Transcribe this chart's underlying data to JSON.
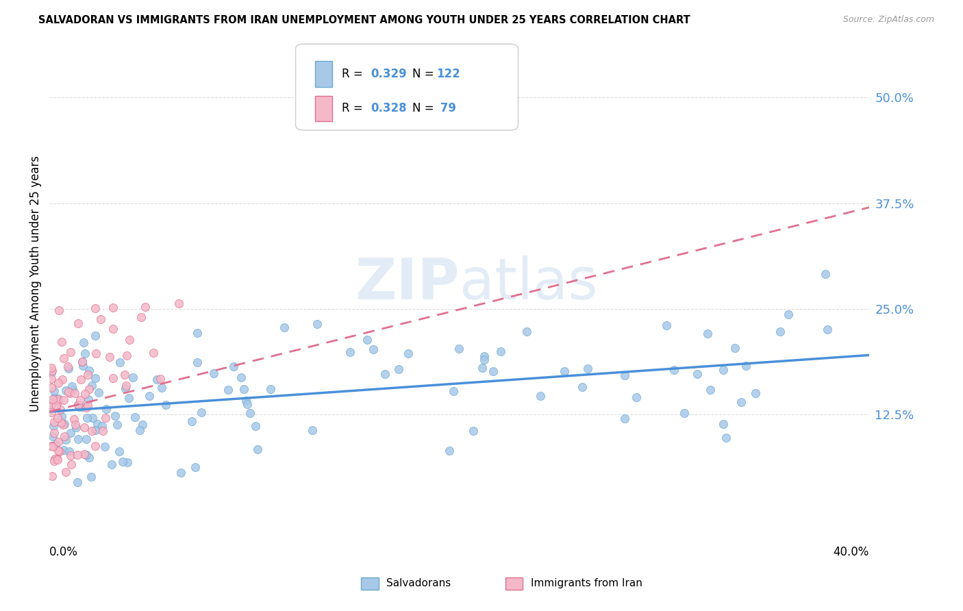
{
  "title": "SALVADORAN VS IMMIGRANTS FROM IRAN UNEMPLOYMENT AMONG YOUTH UNDER 25 YEARS CORRELATION CHART",
  "source": "Source: ZipAtlas.com",
  "ylabel": "Unemployment Among Youth under 25 years",
  "ytick_vals": [
    0.125,
    0.25,
    0.375,
    0.5
  ],
  "ytick_labels": [
    "12.5%",
    "25.0%",
    "37.5%",
    "50.0%"
  ],
  "xlim": [
    0.0,
    0.4
  ],
  "ylim": [
    0.0,
    0.56
  ],
  "salvadorans_fill": "#a8c8e8",
  "salvadorans_edge": "#6aaad4",
  "iran_fill": "#f4b8c8",
  "iran_edge": "#e07090",
  "trend_blue_color": "#4a90d9",
  "trend_pink_color": "#e07090",
  "legend_R_blue": "0.329",
  "legend_N_blue": "122",
  "legend_R_pink": "0.328",
  "legend_N_pink": "79",
  "background_color": "#ffffff",
  "grid_color": "#cccccc",
  "watermark_color": "#ccddf0",
  "axis_label_color": "#4a90d9"
}
